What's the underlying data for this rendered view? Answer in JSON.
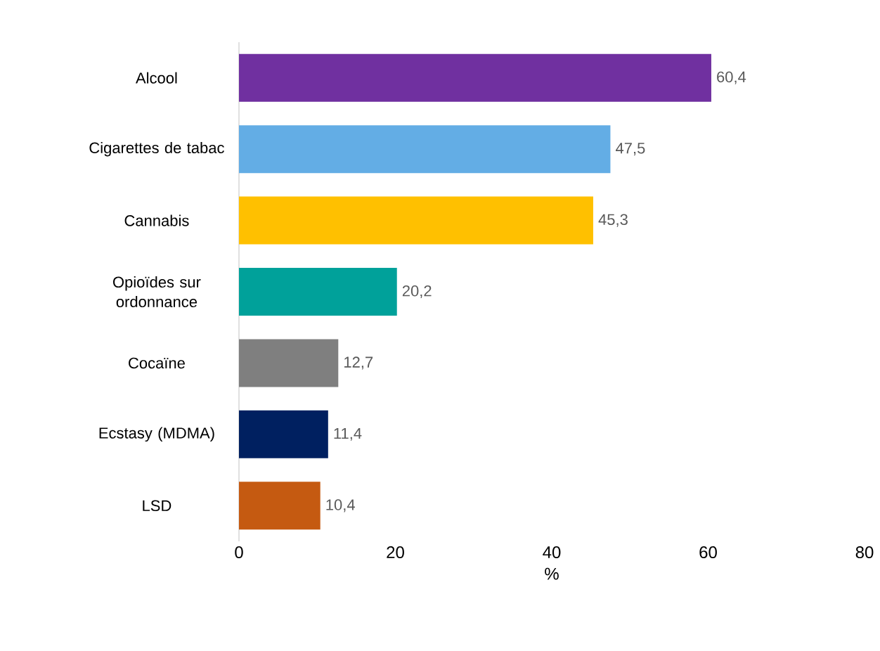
{
  "chart_data": {
    "type": "bar",
    "orientation": "horizontal",
    "xlabel": "%",
    "categories": [
      "Alcool",
      "Cigarettes de tabac",
      "Cannabis",
      "Opioïdes sur ordonnance",
      "Cocaïne",
      "Ecstasy (MDMA)",
      "LSD"
    ],
    "values": [
      60.4,
      47.5,
      45.3,
      20.2,
      12.7,
      11.4,
      10.4
    ],
    "value_labels": [
      "60,4",
      "47,5",
      "45,3",
      "20,2",
      "12,7",
      "11,4",
      "10,4"
    ],
    "colors": [
      "#7030a0",
      "#63ade5",
      "#ffc000",
      "#00a19a",
      "#7f7f7f",
      "#002060",
      "#c55a11"
    ],
    "xlim": [
      0,
      80
    ],
    "xticks": [
      0,
      20,
      40,
      60,
      80
    ]
  }
}
